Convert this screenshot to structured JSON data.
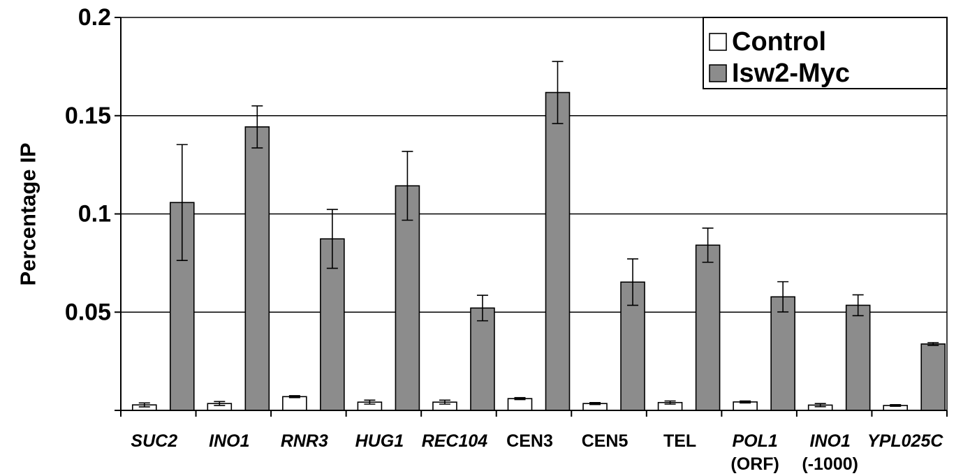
{
  "chart_data": {
    "type": "bar",
    "title": "",
    "xlabel": "",
    "ylabel": "Percentage IP",
    "ylim": [
      0,
      0.2
    ],
    "yticks": [
      "0.05",
      "0.1",
      "0.15",
      "0.2"
    ],
    "ytick_values": [
      0.05,
      0.1,
      0.15,
      0.2
    ],
    "grid": true,
    "legend_position": "top-right",
    "categories": [
      {
        "line1": "SUC2",
        "line2": "",
        "italic": true
      },
      {
        "line1": "INO1",
        "line2": "",
        "italic": true
      },
      {
        "line1": "RNR3",
        "line2": "",
        "italic": true
      },
      {
        "line1": "HUG1",
        "line2": "",
        "italic": true
      },
      {
        "line1": "REC104",
        "line2": "",
        "italic": true
      },
      {
        "line1": "CEN3",
        "line2": "",
        "italic": false
      },
      {
        "line1": "CEN5",
        "line2": "",
        "italic": false
      },
      {
        "line1": "TEL",
        "line2": "",
        "italic": false
      },
      {
        "line1": "POL1",
        "line2": "(ORF)",
        "italic": true
      },
      {
        "line1": "INO1",
        "line2": "(-1000)",
        "italic": true
      },
      {
        "line1": "YPL025C",
        "line2": "",
        "italic": true
      }
    ],
    "series": [
      {
        "name": "Control",
        "color": "#ffffff",
        "values": [
          0.0028,
          0.0035,
          0.007,
          0.0042,
          0.0042,
          0.006,
          0.0035,
          0.004,
          0.0043,
          0.0027,
          0.0025
        ],
        "errors": [
          0.001,
          0.001,
          0.0005,
          0.001,
          0.001,
          0.0005,
          0.0005,
          0.0008,
          0.0005,
          0.0008,
          0.0004
        ]
      },
      {
        "name": "Isw2-Myc",
        "color": "#8c8c8c",
        "values": [
          0.1058,
          0.1443,
          0.0873,
          0.1143,
          0.0521,
          0.1618,
          0.0653,
          0.0841,
          0.0578,
          0.0535,
          0.0338
        ],
        "errors": [
          0.0295,
          0.0107,
          0.015,
          0.0175,
          0.0065,
          0.0158,
          0.0118,
          0.0087,
          0.0077,
          0.0053,
          0.0007
        ]
      }
    ]
  }
}
